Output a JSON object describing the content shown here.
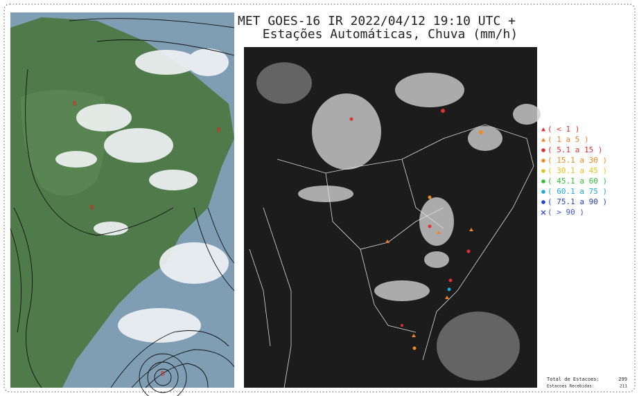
{
  "title": {
    "line1": "MET GOES-16 IR 2022/04/12 19:10 UTC +",
    "line2": "Estações Automáticas, Chuva (mm/h)"
  },
  "legend": [
    {
      "label": "( < 1 )",
      "color": "#e03030",
      "marker": "triangle"
    },
    {
      "label": "( 1 a 5 )",
      "color": "#f08030",
      "marker": "triangle"
    },
    {
      "label": "( 5.1 a 15 )",
      "color": "#e03030",
      "marker": "circle"
    },
    {
      "label": "( 15.1 a 30 )",
      "color": "#f08a20",
      "marker": "circle"
    },
    {
      "label": "( 30.1 a 45 )",
      "color": "#e8c020",
      "marker": "circle"
    },
    {
      "label": "( 45.1 a 60 )",
      "color": "#30c030",
      "marker": "circle"
    },
    {
      "label": "( 60.1 a 75 )",
      "color": "#20a8e0",
      "marker": "circle"
    },
    {
      "label": "( 75.1 a 90 )",
      "color": "#2040d0",
      "marker": "circle"
    },
    {
      "label": "( > 90 )",
      "color": "#4050e0",
      "marker": "cross"
    }
  ],
  "footer": {
    "total_label": "Total de Estacoes:",
    "total": "299",
    "received_label": "Estacoes Recebidas:",
    "received": "211"
  }
}
